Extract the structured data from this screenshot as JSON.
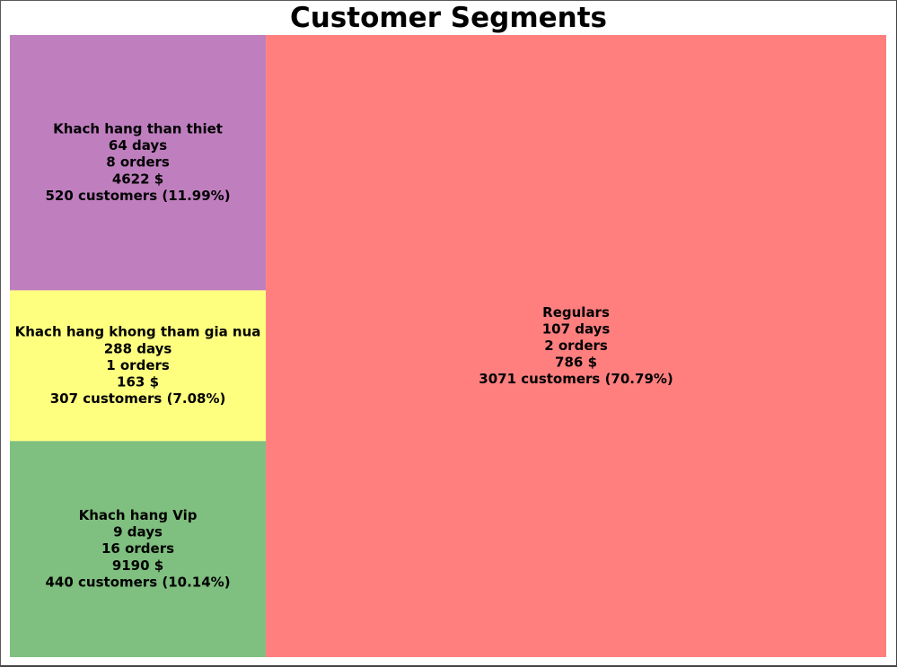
{
  "chart_data": {
    "type": "treemap",
    "title": "Customer Segments",
    "segments": [
      {
        "name": "Khach hang than thiet",
        "days": "64 days",
        "orders": "8 orders",
        "monetary": "4622 $",
        "customers": "520 customers (11.99%)",
        "count": 520,
        "percent": 11.99,
        "color": "#bf7fbf"
      },
      {
        "name": "Khach hang khong tham gia nua",
        "days": "288 days",
        "orders": "1 orders",
        "monetary": "163 $",
        "customers": "307 customers (7.08%)",
        "count": 307,
        "percent": 7.08,
        "color": "#ffff7f"
      },
      {
        "name": "Khach hang Vip",
        "days": "9 days",
        "orders": "16 orders",
        "monetary": "9190 $",
        "customers": "440 customers (10.14%)",
        "count": 440,
        "percent": 10.14,
        "color": "#7fbf7f"
      },
      {
        "name": "Regulars",
        "days": "107 days",
        "orders": "2 orders",
        "monetary": "786 $",
        "customers": "3071 customers (70.79%)",
        "count": 3071,
        "percent": 70.79,
        "color": "#ff7f7f"
      }
    ]
  }
}
